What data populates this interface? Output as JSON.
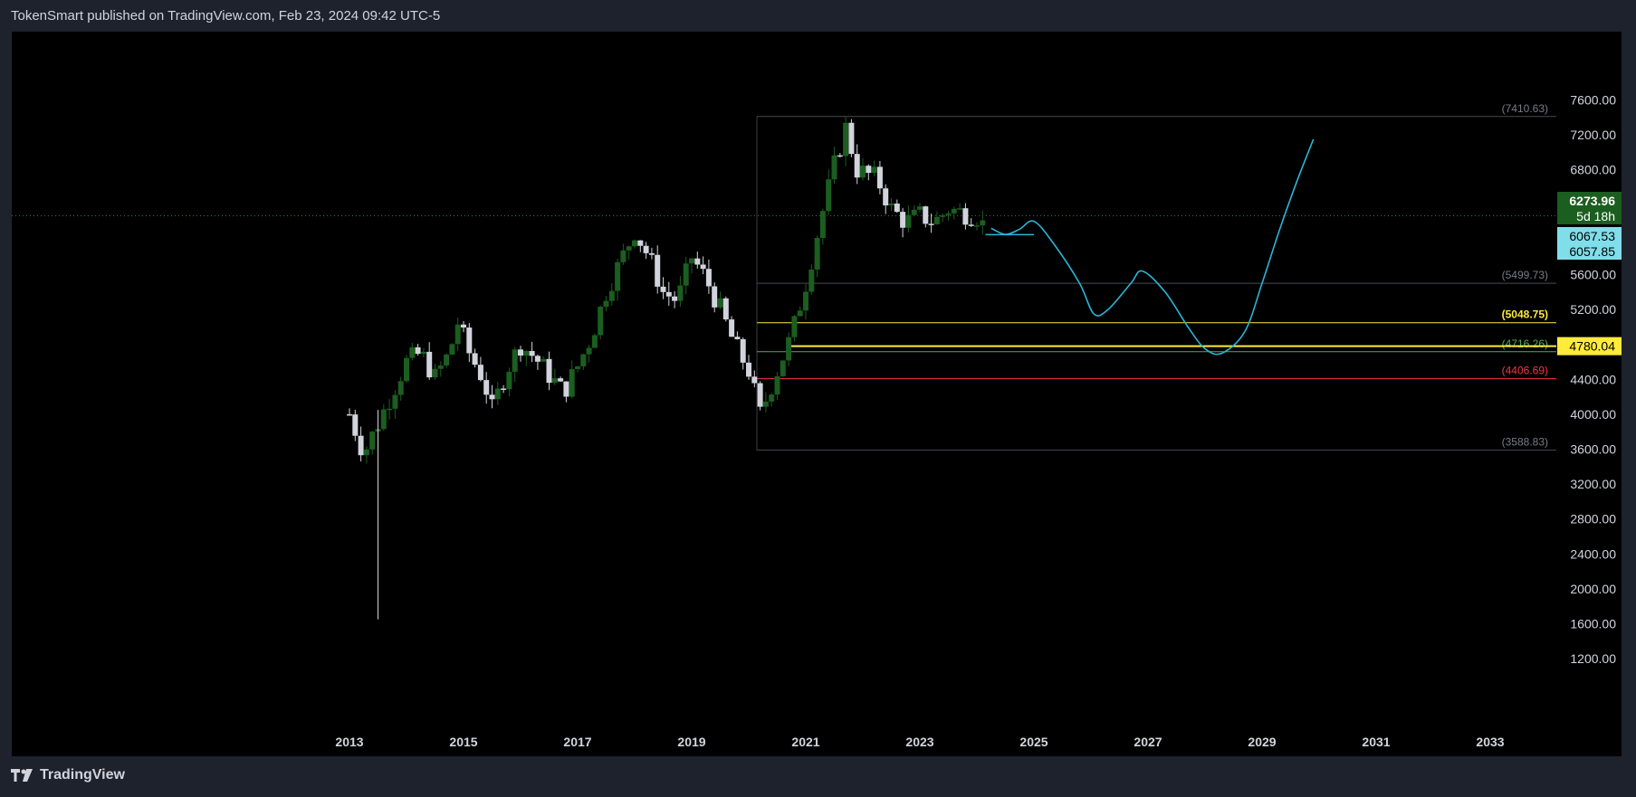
{
  "header": {
    "published_text": "TokenSmart published on TradingView.com, Feb 23, 2024 09:42 UTC-5"
  },
  "footer": {
    "brand": "TradingView"
  },
  "colors": {
    "background": "#000000",
    "frame": "#1e222d",
    "axis_text": "#d1d4dc",
    "up_candle": "#1b5e20",
    "down_candle": "#d1d4dc",
    "projection": "#29b6d8",
    "level_gray": "#787b86",
    "level_yellow": "#ffeb3b",
    "level_green": "#4caf50",
    "level_red": "#f23645"
  },
  "chart_data": {
    "type": "candlestick",
    "title": "",
    "timeframe": "weekly",
    "x_axis": {
      "ticks": [
        "2013",
        "2015",
        "2017",
        "2019",
        "2021",
        "2023",
        "2025",
        "2027",
        "2029",
        "2031",
        "2033"
      ]
    },
    "y_axis": {
      "ticks": [
        "1200.00",
        "1600.00",
        "2000.00",
        "2400.00",
        "2800.00",
        "3200.00",
        "3600.00",
        "4000.00",
        "4400.00",
        "4800.00",
        "5200.00",
        "5600.00",
        "6000.00",
        "6400.00",
        "6800.00",
        "7200.00",
        "7600.00"
      ],
      "range": [
        1040,
        7750
      ],
      "side": "right"
    },
    "grid": false,
    "price_series": [
      [
        "2013.00",
        4000
      ],
      [
        "2013.25",
        3550
      ],
      [
        "2013.50",
        3900
      ],
      [
        "2013.75",
        4250
      ],
      [
        "2014.00",
        4600
      ],
      [
        "2014.25",
        4700
      ],
      [
        "2014.50",
        4420
      ],
      [
        "2014.75",
        4700
      ],
      [
        "2014.90",
        5050
      ],
      [
        "2015.10",
        4700
      ],
      [
        "2015.35",
        4400
      ],
      [
        "2015.50",
        4050
      ],
      [
        "2015.75",
        4500
      ],
      [
        "2016.00",
        4800
      ],
      [
        "2016.25",
        4650
      ],
      [
        "2016.50",
        4450
      ],
      [
        "2016.75",
        4250
      ],
      [
        "2017.00",
        4550
      ],
      [
        "2017.25",
        4900
      ],
      [
        "2017.50",
        5400
      ],
      [
        "2017.75",
        5750
      ],
      [
        "2018.00",
        6100
      ],
      [
        "2018.25",
        5800
      ],
      [
        "2018.50",
        5400
      ],
      [
        "2018.75",
        5300
      ],
      [
        "2019.00",
        5800
      ],
      [
        "2019.25",
        5550
      ],
      [
        "2019.50",
        5200
      ],
      [
        "2019.75",
        4800
      ],
      [
        "2020.00",
        4500
      ],
      [
        "2020.20",
        4000
      ],
      [
        "2020.50",
        4500
      ],
      [
        "2020.75",
        4900
      ],
      [
        "2021.00",
        5500
      ],
      [
        "2021.25",
        6200
      ],
      [
        "2021.50",
        6850
      ],
      [
        "2021.70",
        7280
      ],
      [
        "2021.90",
        6800
      ],
      [
        "2022.25",
        6700
      ],
      [
        "2022.50",
        6350
      ],
      [
        "2022.75",
        6200
      ],
      [
        "2023.00",
        6280
      ],
      [
        "2023.25",
        6200
      ],
      [
        "2023.50",
        6350
      ],
      [
        "2024.00",
        6270
      ],
      [
        "2024.15",
        6130
      ]
    ],
    "last_price": "6273.96",
    "countdown": "5d 18h",
    "price_labels": [
      "6067.53",
      "6057.85",
      "4780.04"
    ],
    "horizontal_levels": [
      {
        "label": "(7410.63)",
        "value": 7410.63,
        "color": "#787b86"
      },
      {
        "label": "(5499.73)",
        "value": 5499.73,
        "color": "#787b86"
      },
      {
        "label": "(5048.75)",
        "value": 5048.75,
        "color": "#ffeb3b"
      },
      {
        "label": "(4716.26)",
        "value": 4716.26,
        "color": "#4caf50"
      },
      {
        "label": "(4406.69)",
        "value": 4406.69,
        "color": "#f23645"
      },
      {
        "label": "(3588.83)",
        "value": 3588.83,
        "color": "#787b86"
      }
    ],
    "highlight_level": {
      "value": 4780.04,
      "color": "#ffeb3b"
    },
    "projection_path": [
      [
        "2024.25",
        6130
      ],
      [
        "2024.50",
        6060
      ],
      [
        "2024.75",
        6120
      ],
      [
        "2025.00",
        6210
      ],
      [
        "2025.35",
        5950
      ],
      [
        "2025.80",
        5500
      ],
      [
        "2026.05",
        5150
      ],
      [
        "2026.30",
        5200
      ],
      [
        "2026.70",
        5500
      ],
      [
        "2026.90",
        5640
      ],
      [
        "2027.30",
        5400
      ],
      [
        "2027.70",
        5000
      ],
      [
        "2028.00",
        4750
      ],
      [
        "2028.30",
        4700
      ],
      [
        "2028.70",
        4950
      ],
      [
        "2029.00",
        5500
      ],
      [
        "2029.30",
        6100
      ],
      [
        "2029.60",
        6650
      ],
      [
        "2029.90",
        7150
      ]
    ],
    "support_line": {
      "x": [
        "2024.15",
        "2025.00"
      ],
      "y": 6057.85
    }
  }
}
